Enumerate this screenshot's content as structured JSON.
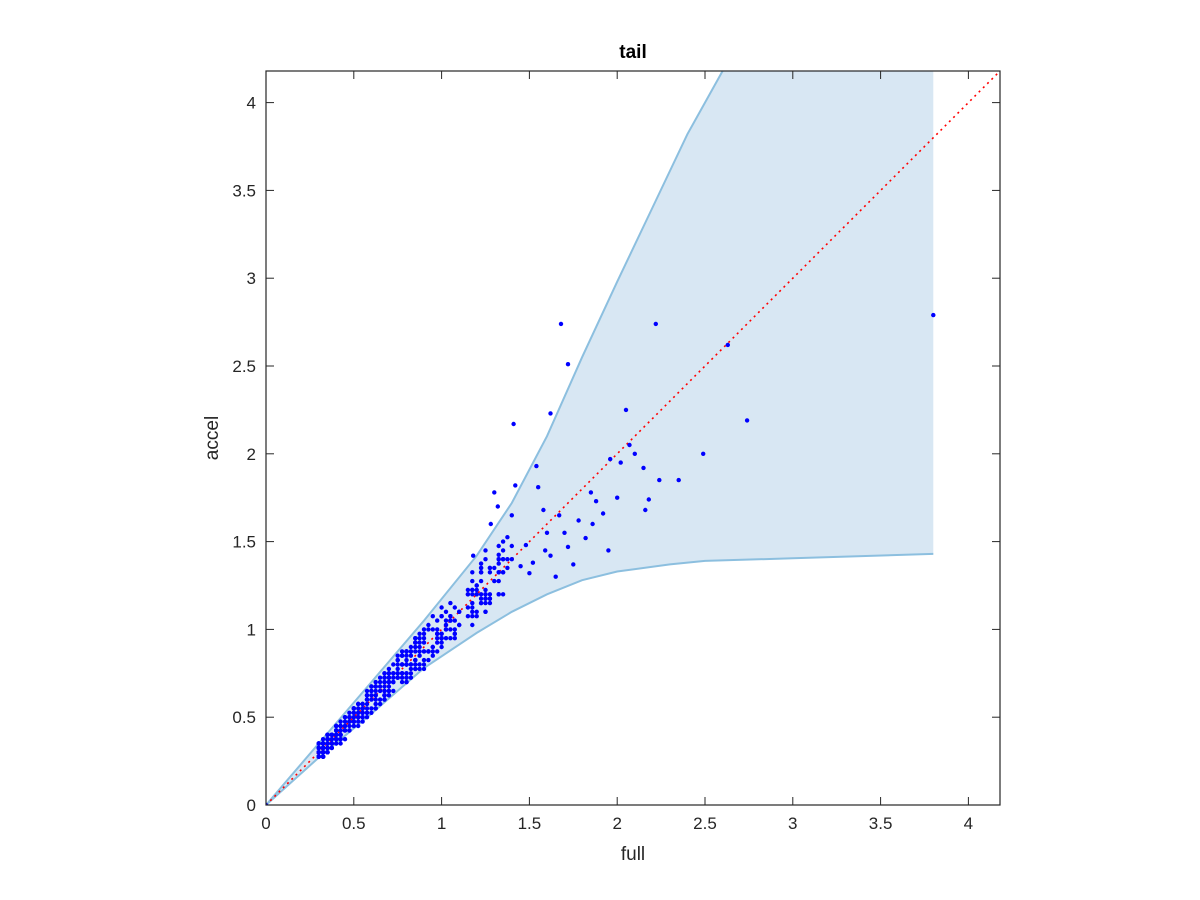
{
  "chart_data": {
    "type": "scatter",
    "title": "tail",
    "xlabel": "full",
    "ylabel": "accel",
    "xlim": [
      0,
      4.18
    ],
    "ylim": [
      0,
      4.18
    ],
    "xticks": [
      0,
      0.5,
      1,
      1.5,
      2,
      2.5,
      3,
      3.5,
      4
    ],
    "xtick_labels": [
      "0",
      "0.5",
      "1",
      "1.5",
      "2",
      "2.5",
      "3",
      "3.5",
      "4"
    ],
    "yticks": [
      0,
      0.5,
      1,
      1.5,
      2,
      2.5,
      3,
      3.5,
      4
    ],
    "ytick_labels": [
      "0",
      "0.5",
      "1",
      "1.5",
      "2",
      "2.5",
      "3",
      "3.5",
      "4"
    ],
    "grid": false,
    "legend": "none",
    "colors": {
      "points": "#0000ff",
      "band_fill": "#d8e7f3",
      "band_edge": "#8cbfdf",
      "reference_line": "#ff0000",
      "axes": "#262626"
    },
    "band": {
      "upper": [
        [
          0,
          0
        ],
        [
          0.3,
          0.35
        ],
        [
          0.6,
          0.7
        ],
        [
          0.9,
          1.05
        ],
        [
          1.2,
          1.42
        ],
        [
          1.4,
          1.72
        ],
        [
          1.6,
          2.1
        ],
        [
          1.8,
          2.55
        ],
        [
          2.0,
          2.98
        ],
        [
          2.2,
          3.4
        ],
        [
          2.4,
          3.82
        ],
        [
          2.6,
          4.18
        ],
        [
          3.8,
          4.18
        ]
      ],
      "lower": [
        [
          0,
          0
        ],
        [
          0.3,
          0.27
        ],
        [
          0.6,
          0.52
        ],
        [
          0.9,
          0.78
        ],
        [
          1.2,
          0.98
        ],
        [
          1.4,
          1.1
        ],
        [
          1.6,
          1.2
        ],
        [
          1.8,
          1.28
        ],
        [
          2.0,
          1.33
        ],
        [
          2.3,
          1.37
        ],
        [
          2.5,
          1.39
        ],
        [
          3.0,
          1.405
        ],
        [
          3.8,
          1.43
        ]
      ]
    },
    "reference_line": {
      "style": "dotted",
      "from": [
        0,
        0
      ],
      "to": [
        4.18,
        4.18
      ]
    },
    "outliers": [
      [
        1.68,
        2.74
      ],
      [
        1.72,
        2.51
      ],
      [
        1.41,
        2.17
      ],
      [
        1.62,
        2.23
      ],
      [
        2.22,
        2.74
      ],
      [
        2.63,
        2.62
      ],
      [
        3.8,
        2.79
      ],
      [
        2.05,
        2.25
      ],
      [
        2.07,
        2.05
      ],
      [
        2.74,
        2.19
      ],
      [
        2.49,
        2.0
      ],
      [
        2.35,
        1.85
      ],
      [
        2.24,
        1.85
      ],
      [
        2.18,
        1.74
      ],
      [
        2.16,
        1.68
      ],
      [
        2.0,
        1.75
      ],
      [
        1.96,
        1.97
      ],
      [
        1.85,
        1.78
      ],
      [
        1.86,
        1.6
      ],
      [
        1.88,
        1.73
      ],
      [
        1.54,
        1.93
      ],
      [
        1.55,
        1.81
      ],
      [
        1.6,
        1.55
      ],
      [
        1.59,
        1.45
      ],
      [
        1.5,
        1.32
      ],
      [
        1.45,
        1.36
      ],
      [
        1.42,
        1.82
      ],
      [
        1.3,
        1.78
      ],
      [
        1.32,
        1.7
      ],
      [
        1.28,
        1.6
      ],
      [
        1.35,
        1.5
      ],
      [
        1.25,
        1.45
      ],
      [
        1.18,
        1.42
      ],
      [
        1.4,
        1.65
      ],
      [
        1.67,
        1.65
      ],
      [
        1.7,
        1.55
      ],
      [
        1.72,
        1.47
      ],
      [
        1.75,
        1.37
      ],
      [
        1.78,
        1.62
      ],
      [
        1.92,
        1.66
      ],
      [
        2.02,
        1.95
      ],
      [
        2.15,
        1.92
      ],
      [
        1.95,
        1.45
      ],
      [
        1.82,
        1.52
      ],
      [
        1.65,
        1.3
      ],
      [
        1.48,
        1.48
      ],
      [
        1.52,
        1.38
      ],
      [
        1.58,
        1.68
      ],
      [
        1.62,
        1.42
      ],
      [
        2.1,
        2.0
      ]
    ],
    "cluster_count": 520,
    "cluster_range_x": [
      0.31,
      1.4
    ],
    "note": "dense cluster of points along the diagonal between full 0.3 and 1.4"
  }
}
